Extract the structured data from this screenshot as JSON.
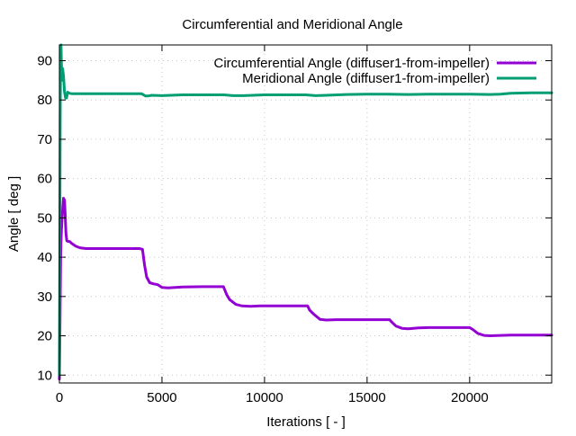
{
  "chart_data": {
    "type": "line",
    "title": "Circumferential and Meridional Angle",
    "xlabel": "Iterations [ - ]",
    "ylabel": "Angle [ deg ]",
    "xlim": [
      0,
      24000
    ],
    "ylim": [
      8,
      94
    ],
    "xticks": [
      0,
      5000,
      10000,
      15000,
      20000
    ],
    "yticks": [
      10,
      20,
      30,
      40,
      50,
      60,
      70,
      80,
      90
    ],
    "grid": true,
    "legend_position": "top-right",
    "series": [
      {
        "name": "Circumferential Angle (diffuser1-from-impeller)",
        "color": "#9400d3",
        "x": [
          0,
          30,
          60,
          80,
          100,
          130,
          160,
          200,
          250,
          280,
          320,
          360,
          420,
          500,
          600,
          800,
          1000,
          1300,
          1600,
          2000,
          2500,
          3000,
          3500,
          3900,
          4050,
          4150,
          4250,
          4400,
          4600,
          4800,
          5000,
          5300,
          6000,
          7000,
          8000,
          8150,
          8300,
          8600,
          8900,
          9300,
          9800,
          10500,
          11500,
          12100,
          12200,
          12400,
          12700,
          13000,
          13500,
          14500,
          15500,
          16100,
          16200,
          16400,
          16700,
          17000,
          17500,
          18000,
          19000,
          20000,
          20150,
          20400,
          20700,
          21000,
          21500,
          22000,
          23000,
          24000
        ],
        "y": [
          9,
          24,
          40,
          44,
          47,
          50,
          52,
          55,
          54.5,
          51,
          46,
          44.2,
          44,
          44,
          43.5,
          42.8,
          42.4,
          42.2,
          42.2,
          42.2,
          42.2,
          42.2,
          42.2,
          42.2,
          42,
          38,
          35,
          33.5,
          33.2,
          33,
          32.3,
          32.2,
          32.4,
          32.5,
          32.5,
          30.5,
          29.2,
          28,
          27.6,
          27.5,
          27.6,
          27.6,
          27.6,
          27.6,
          26.5,
          25.5,
          24.2,
          24,
          24.1,
          24.1,
          24.1,
          24.1,
          23.5,
          22.5,
          21.9,
          21.8,
          22,
          22.1,
          22.1,
          22.1,
          21.6,
          20.6,
          20.1,
          20,
          20.1,
          20.2,
          20.2,
          20.2
        ]
      },
      {
        "name": "Meridional Angle (diffuser1-from-impeller)",
        "color": "#009e73",
        "x": [
          0,
          20,
          40,
          60,
          80,
          100,
          130,
          160,
          200,
          250,
          300,
          350,
          400,
          450,
          500,
          600,
          800,
          1000,
          1500,
          2000,
          3000,
          4000,
          4200,
          4300,
          4500,
          5000,
          6000,
          7000,
          8000,
          8500,
          9000,
          10000,
          11000,
          12000,
          12500,
          13000,
          14000,
          15000,
          16000,
          17000,
          18000,
          19000,
          20000,
          21000,
          21500,
          22000,
          23000,
          24000
        ],
        "y": [
          10,
          45,
          75,
          93,
          94,
          89,
          85,
          88,
          86,
          82,
          80.5,
          80.5,
          82,
          81.8,
          81.7,
          81.6,
          81.6,
          81.6,
          81.6,
          81.6,
          81.6,
          81.6,
          81,
          81,
          81.2,
          81.1,
          81.3,
          81.3,
          81.3,
          81.1,
          81.1,
          81.3,
          81.3,
          81.3,
          81.1,
          81.2,
          81.4,
          81.5,
          81.5,
          81.4,
          81.5,
          81.5,
          81.5,
          81.4,
          81.5,
          81.7,
          81.8,
          81.8
        ]
      }
    ]
  }
}
